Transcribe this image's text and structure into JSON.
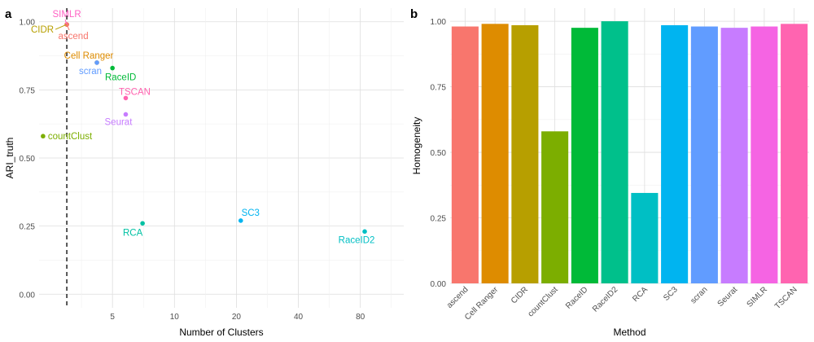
{
  "panels": {
    "a": {
      "label": "a"
    },
    "b": {
      "label": "b"
    }
  },
  "chart_data": [
    {
      "type": "scatter",
      "panel": "a",
      "title": "",
      "xlabel": "Number of Clusters",
      "ylabel": "ARI_truth",
      "x_scale": "log",
      "x_ticks": [
        5,
        10,
        20,
        40,
        80
      ],
      "xlim": [
        2.2,
        130
      ],
      "ylim": [
        -0.05,
        1.05
      ],
      "y_ticks": [
        0.0,
        0.25,
        0.5,
        0.75,
        1.0
      ],
      "y_tick_labels": [
        "0.00",
        "0.25",
        "0.50",
        "0.75",
        "1.00"
      ],
      "grid": true,
      "reference_line": {
        "x": 3,
        "style": "dashed",
        "color": "#000000"
      },
      "points": [
        {
          "label": "SIMLR",
          "x": 3,
          "y": 0.99,
          "color": "#FF61C3"
        },
        {
          "label": "CIDR",
          "x": 3,
          "y": 0.99,
          "color": "#B79F00"
        },
        {
          "label": "ascend",
          "x": 3,
          "y": 0.99,
          "color": "#F8766D"
        },
        {
          "label": "Cell Ranger",
          "x": 4.2,
          "y": 0.85,
          "color": "#DE8C00"
        },
        {
          "label": "scran",
          "x": 4.2,
          "y": 0.85,
          "color": "#619CFF"
        },
        {
          "label": "RaceID",
          "x": 5,
          "y": 0.83,
          "color": "#00BA38"
        },
        {
          "label": "TSCAN",
          "x": 5.8,
          "y": 0.72,
          "color": "#FF64B0"
        },
        {
          "label": "Seurat",
          "x": 5.8,
          "y": 0.66,
          "color": "#C77CFF"
        },
        {
          "label": "countClust",
          "x": 2.3,
          "y": 0.58,
          "color": "#7CAE00"
        },
        {
          "label": "RCA",
          "x": 7,
          "y": 0.26,
          "color": "#00C1A3"
        },
        {
          "label": "SC3",
          "x": 21,
          "y": 0.27,
          "color": "#00B4F0"
        },
        {
          "label": "RaceID2",
          "x": 84,
          "y": 0.23,
          "color": "#00BFC4"
        }
      ]
    },
    {
      "type": "bar",
      "panel": "b",
      "title": "",
      "xlabel": "Method",
      "ylabel": "Homogeneity",
      "ylim": [
        0,
        1.05
      ],
      "y_ticks": [
        0.0,
        0.25,
        0.5,
        0.75,
        1.0
      ],
      "y_tick_labels": [
        "0.00",
        "0.25",
        "0.50",
        "0.75",
        "1.00"
      ],
      "grid": true,
      "categories": [
        "ascend",
        "Cell Ranger",
        "CIDR",
        "countClust",
        "RaceID",
        "RaceID2",
        "RCA",
        "SC3",
        "scran",
        "Seurat",
        "SIMLR",
        "TSCAN"
      ],
      "values": [
        0.98,
        0.99,
        0.985,
        0.58,
        0.975,
        1.0,
        0.345,
        0.985,
        0.98,
        0.975,
        0.98,
        0.99
      ],
      "colors": [
        "#F8766D",
        "#DE8C00",
        "#B79F00",
        "#7CAE00",
        "#00BA38",
        "#00C08B",
        "#00BFC4",
        "#00B4F0",
        "#619CFF",
        "#C77CFF",
        "#F564E3",
        "#FF64B0"
      ]
    }
  ]
}
